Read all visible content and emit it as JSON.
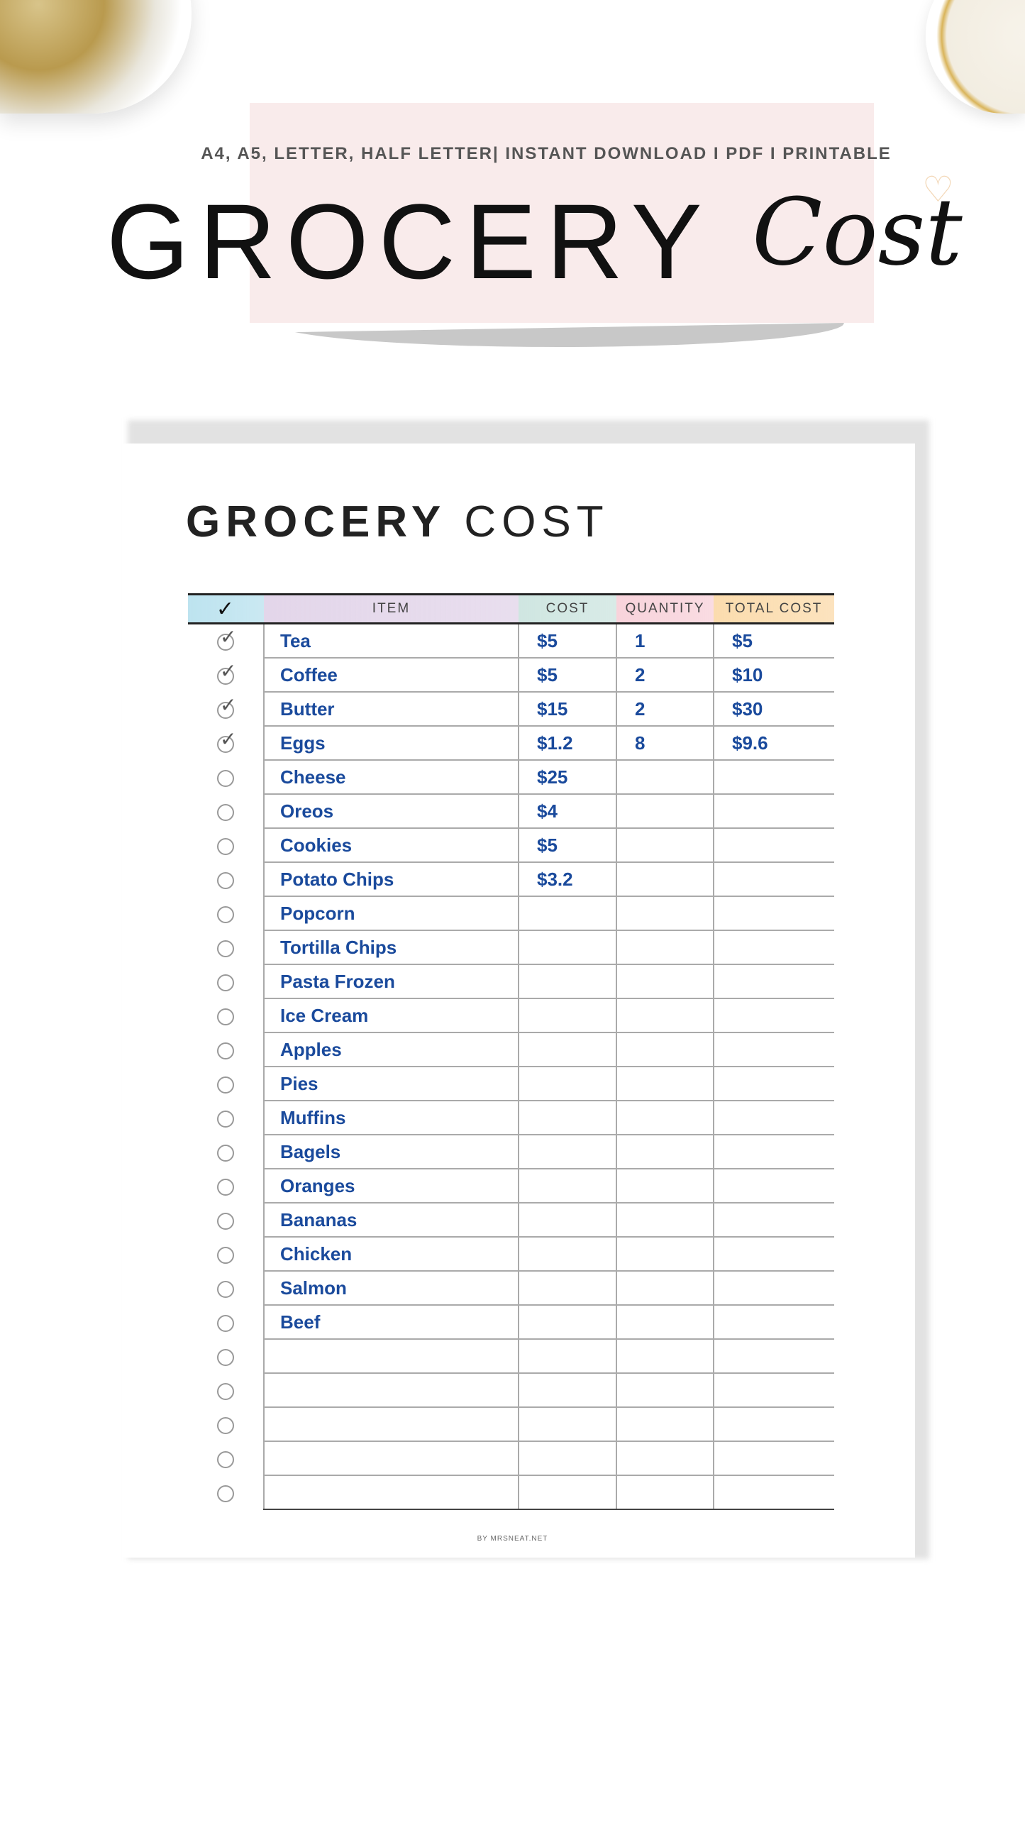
{
  "banner": {
    "subtitle": "A4, A5, LETTER, HALF LETTER| INSTANT DOWNLOAD I PDF I PRINTABLE",
    "title_main": "GROCERY",
    "title_script": "Cost",
    "colors": {
      "pink_band": "#f9ebeb",
      "swoosh": "#c8c8c8"
    }
  },
  "document": {
    "title_bold": "GROCERY",
    "title_light": "COST",
    "columns": [
      {
        "label": "✓",
        "color": "#bde3ef"
      },
      {
        "label": "ITEM",
        "color": "#e3d6ea"
      },
      {
        "label": "COST",
        "color": "#cfe6e1"
      },
      {
        "label": "QUANTITY",
        "color": "#f8d3db"
      },
      {
        "label": "TOTAL COST",
        "color": "#fbdcae"
      }
    ],
    "rows": [
      {
        "checked": true,
        "item": "Tea",
        "cost": "$5",
        "quantity": "1",
        "total": "$5"
      },
      {
        "checked": true,
        "item": "Coffee",
        "cost": "$5",
        "quantity": "2",
        "total": "$10"
      },
      {
        "checked": true,
        "item": "Butter",
        "cost": "$15",
        "quantity": "2",
        "total": "$30"
      },
      {
        "checked": true,
        "item": "Eggs",
        "cost": "$1.2",
        "quantity": "8",
        "total": "$9.6"
      },
      {
        "checked": false,
        "item": "Cheese",
        "cost": "$25",
        "quantity": "",
        "total": ""
      },
      {
        "checked": false,
        "item": "Oreos",
        "cost": "$4",
        "quantity": "",
        "total": ""
      },
      {
        "checked": false,
        "item": "Cookies",
        "cost": "$5",
        "quantity": "",
        "total": ""
      },
      {
        "checked": false,
        "item": "Potato Chips",
        "cost": "$3.2",
        "quantity": "",
        "total": ""
      },
      {
        "checked": false,
        "item": "Popcorn",
        "cost": "",
        "quantity": "",
        "total": ""
      },
      {
        "checked": false,
        "item": "Tortilla Chips",
        "cost": "",
        "quantity": "",
        "total": ""
      },
      {
        "checked": false,
        "item": "Pasta Frozen",
        "cost": "",
        "quantity": "",
        "total": ""
      },
      {
        "checked": false,
        "item": "Ice Cream",
        "cost": "",
        "quantity": "",
        "total": ""
      },
      {
        "checked": false,
        "item": "Apples",
        "cost": "",
        "quantity": "",
        "total": ""
      },
      {
        "checked": false,
        "item": "Pies",
        "cost": "",
        "quantity": "",
        "total": ""
      },
      {
        "checked": false,
        "item": "Muffins",
        "cost": "",
        "quantity": "",
        "total": ""
      },
      {
        "checked": false,
        "item": "Bagels",
        "cost": "",
        "quantity": "",
        "total": ""
      },
      {
        "checked": false,
        "item": "Oranges",
        "cost": "",
        "quantity": "",
        "total": ""
      },
      {
        "checked": false,
        "item": "Bananas",
        "cost": "",
        "quantity": "",
        "total": ""
      },
      {
        "checked": false,
        "item": "Chicken",
        "cost": "",
        "quantity": "",
        "total": ""
      },
      {
        "checked": false,
        "item": "Salmon",
        "cost": "",
        "quantity": "",
        "total": ""
      },
      {
        "checked": false,
        "item": "Beef",
        "cost": "",
        "quantity": "",
        "total": ""
      },
      {
        "checked": false,
        "item": "",
        "cost": "",
        "quantity": "",
        "total": ""
      },
      {
        "checked": false,
        "item": "",
        "cost": "",
        "quantity": "",
        "total": ""
      },
      {
        "checked": false,
        "item": "",
        "cost": "",
        "quantity": "",
        "total": ""
      },
      {
        "checked": false,
        "item": "",
        "cost": "",
        "quantity": "",
        "total": ""
      },
      {
        "checked": false,
        "item": "",
        "cost": "",
        "quantity": "",
        "total": ""
      }
    ],
    "footer": "BY MRSNEAT.NET",
    "handwriting_color": "#1a4a9c"
  }
}
